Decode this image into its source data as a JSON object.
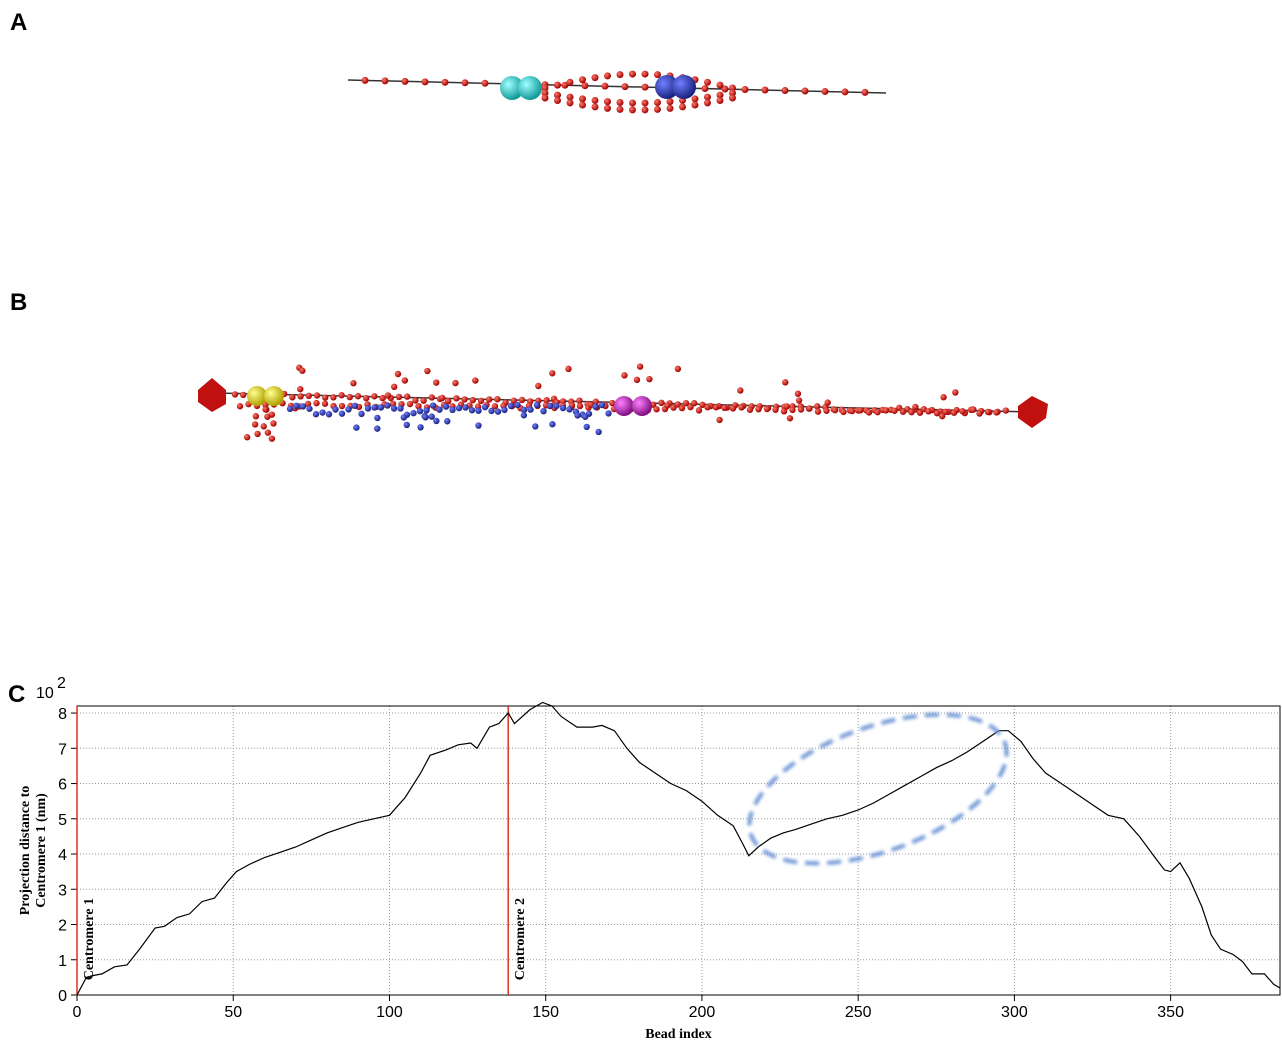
{
  "panels": {
    "a": "A",
    "b": "B",
    "c": "C"
  },
  "chart_data": {
    "type": "line",
    "x_label": "Bead index",
    "y_label": [
      "Projection distance to",
      "Centromere 1 (nm)"
    ],
    "y_multiplier": {
      "base": "10",
      "exponent": "2"
    },
    "xlim": [
      0,
      385
    ],
    "ylim": [
      0,
      8.2
    ],
    "xticks": [
      0,
      50,
      100,
      150,
      200,
      250,
      300,
      350
    ],
    "yticks": [
      0,
      1,
      2,
      3,
      4,
      5,
      6,
      7,
      8
    ],
    "grid": true,
    "markers": [
      {
        "x": 0,
        "label": "Centromere 1",
        "color": "#e0301e"
      },
      {
        "x": 138,
        "label": "Centromere 2",
        "color": "#e0301e"
      }
    ],
    "x": [
      0,
      3,
      5,
      8,
      12,
      16,
      20,
      25,
      28,
      32,
      36,
      40,
      44,
      48,
      51,
      55,
      60,
      65,
      70,
      75,
      80,
      85,
      90,
      95,
      100,
      102,
      105,
      110,
      113,
      118,
      122,
      126,
      128,
      132,
      135,
      138,
      140,
      145,
      149,
      152,
      155,
      160,
      165,
      168,
      172,
      176,
      180,
      185,
      190,
      195,
      200,
      205,
      210,
      213,
      215,
      218,
      222,
      226,
      230,
      235,
      240,
      245,
      250,
      255,
      260,
      265,
      270,
      275,
      280,
      285,
      290,
      295,
      298,
      302,
      306,
      310,
      315,
      320,
      325,
      330,
      335,
      340,
      345,
      348,
      350,
      353,
      356,
      360,
      363,
      366,
      370,
      373,
      376,
      380,
      383,
      385
    ],
    "series": [
      {
        "color": "#000000",
        "values": [
          0,
          0.5,
          0.55,
          0.6,
          0.8,
          0.85,
          1.3,
          1.9,
          1.95,
          2.2,
          2.3,
          2.65,
          2.75,
          3.2,
          3.5,
          3.7,
          3.9,
          4.05,
          4.2,
          4.4,
          4.6,
          4.75,
          4.9,
          5.0,
          5.1,
          5.3,
          5.6,
          6.3,
          6.8,
          6.95,
          7.1,
          7.15,
          7.0,
          7.6,
          7.7,
          8.0,
          7.7,
          8.1,
          8.3,
          8.2,
          7.9,
          7.6,
          7.6,
          7.65,
          7.5,
          7.0,
          6.6,
          6.3,
          6.0,
          5.8,
          5.5,
          5.1,
          4.8,
          4.3,
          3.95,
          4.2,
          4.45,
          4.6,
          4.7,
          4.85,
          5.0,
          5.1,
          5.25,
          5.45,
          5.7,
          5.95,
          6.2,
          6.45,
          6.65,
          6.9,
          7.2,
          7.5,
          7.5,
          7.2,
          6.7,
          6.3,
          6.0,
          5.7,
          5.4,
          5.1,
          5.0,
          4.5,
          3.9,
          3.55,
          3.5,
          3.75,
          3.3,
          2.5,
          1.7,
          1.3,
          1.15,
          0.95,
          0.6,
          0.6,
          0.3,
          0.2
        ]
      }
    ]
  }
}
